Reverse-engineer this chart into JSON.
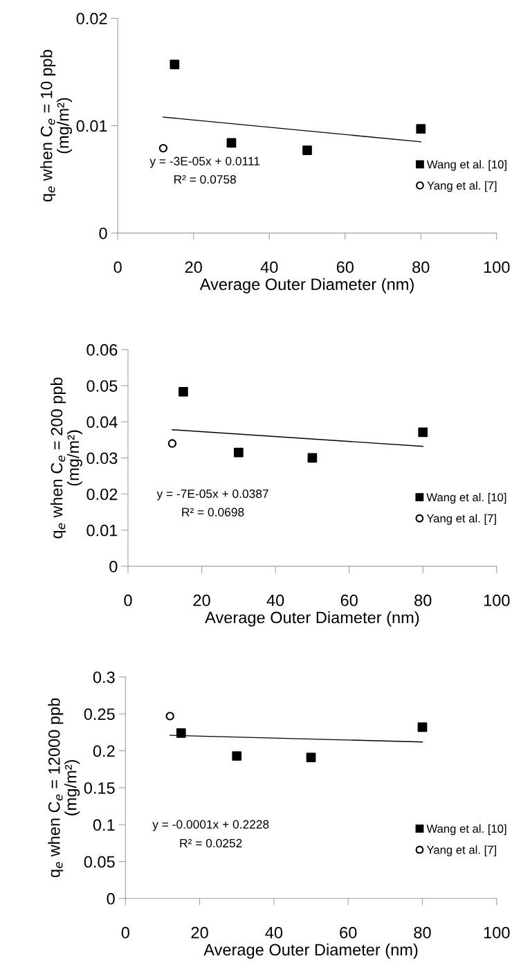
{
  "chart_data": [
    {
      "type": "scatter",
      "xlabel": "Average Outer Diameter (nm)",
      "ylabel": "q$_{e}$ when C$_{e}$ = 10 ppb\n(mg/m²)",
      "xlim": [
        0,
        100
      ],
      "xticks": [
        0,
        20,
        40,
        60,
        80,
        100
      ],
      "ylim": [
        0,
        0.02
      ],
      "yticks": [
        0,
        0.01,
        0.02
      ],
      "grid": false,
      "legend": "bottom right",
      "annotations": [
        "y = -3E-05x + 0.0111",
        "R² = 0.0758"
      ],
      "series": [
        {
          "name": "Wang et al. [10]",
          "color": "#000000",
          "marker": "square",
          "x": [
            15,
            30,
            50,
            80
          ],
          "values": [
            0.0157,
            0.0084,
            0.0077,
            0.0097
          ]
        },
        {
          "name": "Yang et al. [7]",
          "color": "#000000",
          "marker": "circle",
          "x": [
            12
          ],
          "values": [
            0.0079
          ]
        },
        {
          "type": "line",
          "color": "#000000",
          "marker": "none",
          "line_style": "solid",
          "x": [
            12,
            80
          ],
          "values": [
            0.0108,
            0.0085
          ]
        }
      ]
    },
    {
      "type": "scatter",
      "xlabel": "Average Outer Diameter (nm)",
      "ylabel": "q$_{e}$ when C$_{e}$ = 200 ppb\n(mg/m²)",
      "xlim": [
        0,
        100
      ],
      "xticks": [
        0,
        20,
        40,
        60,
        80,
        100
      ],
      "ylim": [
        0,
        0.06
      ],
      "yticks": [
        0,
        0.01,
        0.02,
        0.03,
        0.04,
        0.05,
        0.06
      ],
      "grid": false,
      "legend": "bottom right",
      "annotations": [
        "y = -7E-05x + 0.0387",
        "R² = 0.0698"
      ],
      "series": [
        {
          "name": "Wang et al. [10]",
          "color": "#000000",
          "marker": "square",
          "x": [
            15,
            30,
            50,
            80
          ],
          "values": [
            0.0483,
            0.0315,
            0.03,
            0.0371
          ]
        },
        {
          "name": "Yang et al. [7]",
          "color": "#000000",
          "marker": "circle",
          "x": [
            12
          ],
          "values": [
            0.034
          ]
        },
        {
          "type": "line",
          "color": "#000000",
          "marker": "none",
          "line_style": "solid",
          "x": [
            12,
            80
          ],
          "values": [
            0.0378,
            0.0332
          ]
        }
      ]
    },
    {
      "type": "scatter",
      "xlabel": "Average Outer Diameter (nm)",
      "ylabel": "q$_{e}$ when C$_{e}$ = 12000 ppb\n(mg/m²)",
      "xlim": [
        0,
        100
      ],
      "xticks": [
        0,
        20,
        40,
        60,
        80,
        100
      ],
      "ylim": [
        0,
        0.3
      ],
      "yticks": [
        0,
        0.05,
        0.1,
        0.15,
        0.2,
        0.25,
        0.3
      ],
      "grid": false,
      "legend": "bottom right",
      "annotations": [
        "y = -0.0001x + 0.2228",
        "R² = 0.0252"
      ],
      "series": [
        {
          "name": "Wang et al. [10]",
          "color": "#000000",
          "marker": "square",
          "x": [
            15,
            30,
            50,
            80
          ],
          "values": [
            0.224,
            0.193,
            0.191,
            0.232
          ]
        },
        {
          "name": "Yang et al. [7]",
          "color": "#000000",
          "marker": "circle",
          "x": [
            12
          ],
          "values": [
            0.247
          ]
        },
        {
          "type": "line",
          "color": "#000000",
          "marker": "none",
          "line_style": "solid",
          "x": [
            12,
            80
          ],
          "values": [
            0.221,
            0.212
          ]
        }
      ]
    }
  ]
}
